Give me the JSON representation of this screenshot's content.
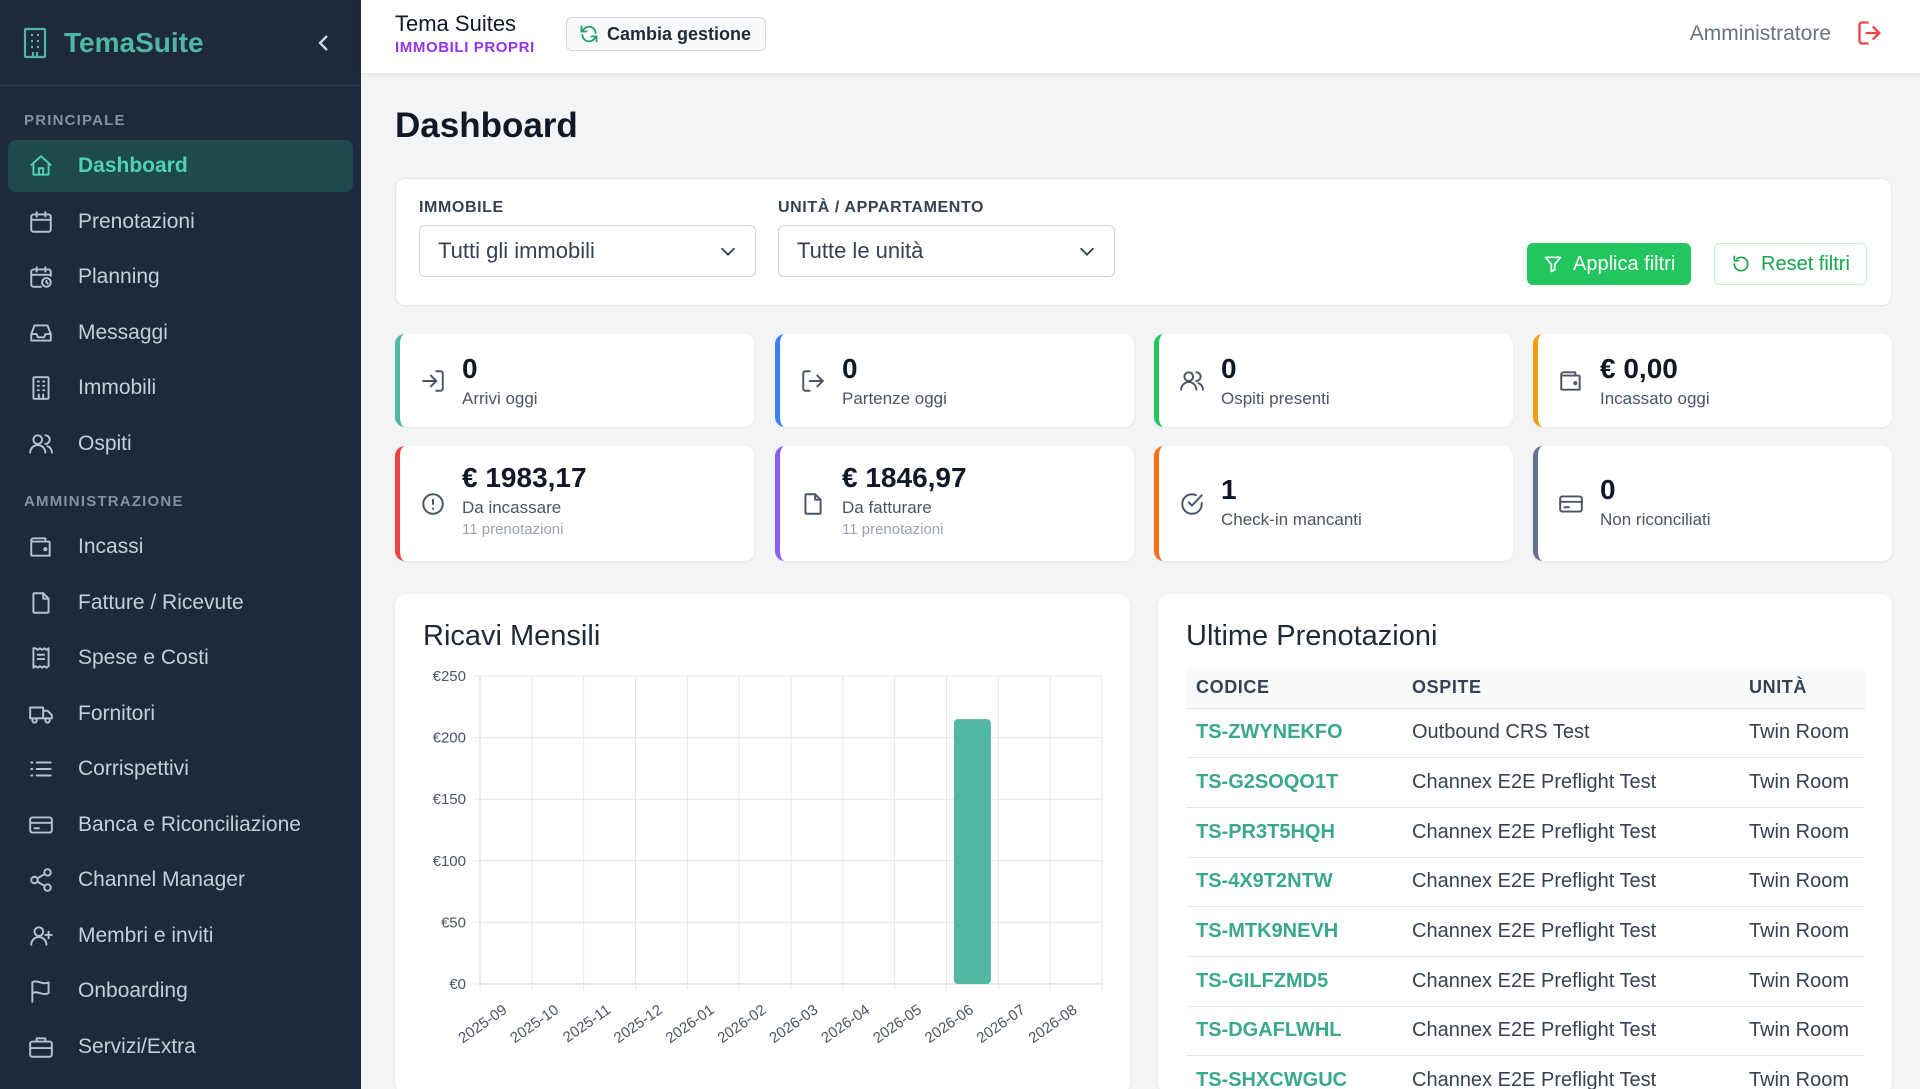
{
  "brand": {
    "name": "TemaSuite"
  },
  "sidebar": {
    "sections": [
      {
        "label": "PRINCIPALE",
        "items": [
          {
            "label": "Dashboard",
            "icon": "home-icon",
            "active": true
          },
          {
            "label": "Prenotazioni",
            "icon": "calendar-icon"
          },
          {
            "label": "Planning",
            "icon": "calendar-clock-icon"
          },
          {
            "label": "Messaggi",
            "icon": "inbox-icon"
          },
          {
            "label": "Immobili",
            "icon": "building-icon"
          },
          {
            "label": "Ospiti",
            "icon": "users-icon"
          }
        ]
      },
      {
        "label": "AMMINISTRAZIONE",
        "items": [
          {
            "label": "Incassi",
            "icon": "wallet-icon"
          },
          {
            "label": "Fatture / Ricevute",
            "icon": "file-icon"
          },
          {
            "label": "Spese e Costi",
            "icon": "receipt-icon"
          },
          {
            "label": "Fornitori",
            "icon": "truck-icon"
          },
          {
            "label": "Corrispettivi",
            "icon": "list-icon"
          },
          {
            "label": "Banca e Riconciliazione",
            "icon": "credit-card-icon"
          },
          {
            "label": "Channel Manager",
            "icon": "share-icon"
          },
          {
            "label": "Membri e inviti",
            "icon": "user-plus-icon"
          },
          {
            "label": "Onboarding",
            "icon": "flag-icon"
          },
          {
            "label": "Servizi/Extra",
            "icon": "briefcase-icon"
          }
        ]
      }
    ]
  },
  "header": {
    "org_name": "Tema Suites",
    "org_type": "IMMOBILI PROPRI",
    "switch_label": "Cambia gestione",
    "user": "Amministratore"
  },
  "main": {
    "title": "Dashboard",
    "filters": {
      "property_label": "IMMOBILE",
      "property_value": "Tutti gli immobili",
      "unit_label": "UNITÀ / APPARTAMENTO",
      "unit_value": "Tutte le unità",
      "apply_label": "Applica filtri",
      "reset_label": "Reset filtri"
    },
    "stats": [
      {
        "value": "0",
        "label": "Arrivi oggi",
        "sub": "",
        "icon": "log-in-icon",
        "color": "#4fb8a4"
      },
      {
        "value": "0",
        "label": "Partenze oggi",
        "sub": "",
        "icon": "log-out-icon",
        "color": "#3b82f6"
      },
      {
        "value": "0",
        "label": "Ospiti presenti",
        "sub": "",
        "icon": "users-icon",
        "color": "#22c55e"
      },
      {
        "value": "€ 0,00",
        "label": "Incassato oggi",
        "sub": "",
        "icon": "wallet-icon",
        "color": "#f59e0b"
      },
      {
        "value": "€ 1983,17",
        "label": "Da incassare",
        "sub": "11 prenotazioni",
        "icon": "alert-circle-icon",
        "color": "#ef4444"
      },
      {
        "value": "€ 1846,97",
        "label": "Da fatturare",
        "sub": "11 prenotazioni",
        "icon": "file-icon",
        "color": "#8b5cf6"
      },
      {
        "value": "1",
        "label": "Check-in mancanti",
        "sub": "",
        "icon": "check-circle-icon",
        "color": "#f97316"
      },
      {
        "value": "0",
        "label": "Non riconciliati",
        "sub": "",
        "icon": "credit-card-icon",
        "color": "#64748b"
      }
    ],
    "revenue_title": "Ricavi Mensili",
    "bookings": {
      "title": "Ultime Prenotazioni",
      "columns": [
        "CODICE",
        "OSPITE",
        "UNITÀ"
      ],
      "rows": [
        [
          "TS-ZWYNEKFO",
          "Outbound CRS Test",
          "Twin Room"
        ],
        [
          "TS-G2SOQO1T",
          "Channex E2E Preflight Test",
          "Twin Room"
        ],
        [
          "TS-PR3T5HQH",
          "Channex E2E Preflight Test",
          "Twin Room"
        ],
        [
          "TS-4X9T2NTW",
          "Channex E2E Preflight Test",
          "Twin Room"
        ],
        [
          "TS-MTK9NEVH",
          "Channex E2E Preflight Test",
          "Twin Room"
        ],
        [
          "TS-GILFZMD5",
          "Channex E2E Preflight Test",
          "Twin Room"
        ],
        [
          "TS-DGAFLWHL",
          "Channex E2E Preflight Test",
          "Twin Room"
        ],
        [
          "TS-SHXCWGUC",
          "Channex E2E Preflight Test",
          "Twin Room"
        ]
      ]
    }
  },
  "chart_data": {
    "type": "bar",
    "title": "Ricavi Mensili",
    "categories": [
      "2025-09",
      "2025-10",
      "2025-11",
      "2025-12",
      "2026-01",
      "2026-02",
      "2026-03",
      "2026-04",
      "2026-05",
      "2026-06",
      "2026-07",
      "2026-08"
    ],
    "values": [
      0,
      0,
      0,
      0,
      0,
      0,
      0,
      0,
      0,
      215,
      0,
      0
    ],
    "y_ticks": [
      "€0",
      "€50",
      "€100",
      "€150",
      "€200",
      "€250"
    ],
    "ylim": [
      0,
      250
    ],
    "grid": true,
    "bar_color": "#52b8a3"
  }
}
